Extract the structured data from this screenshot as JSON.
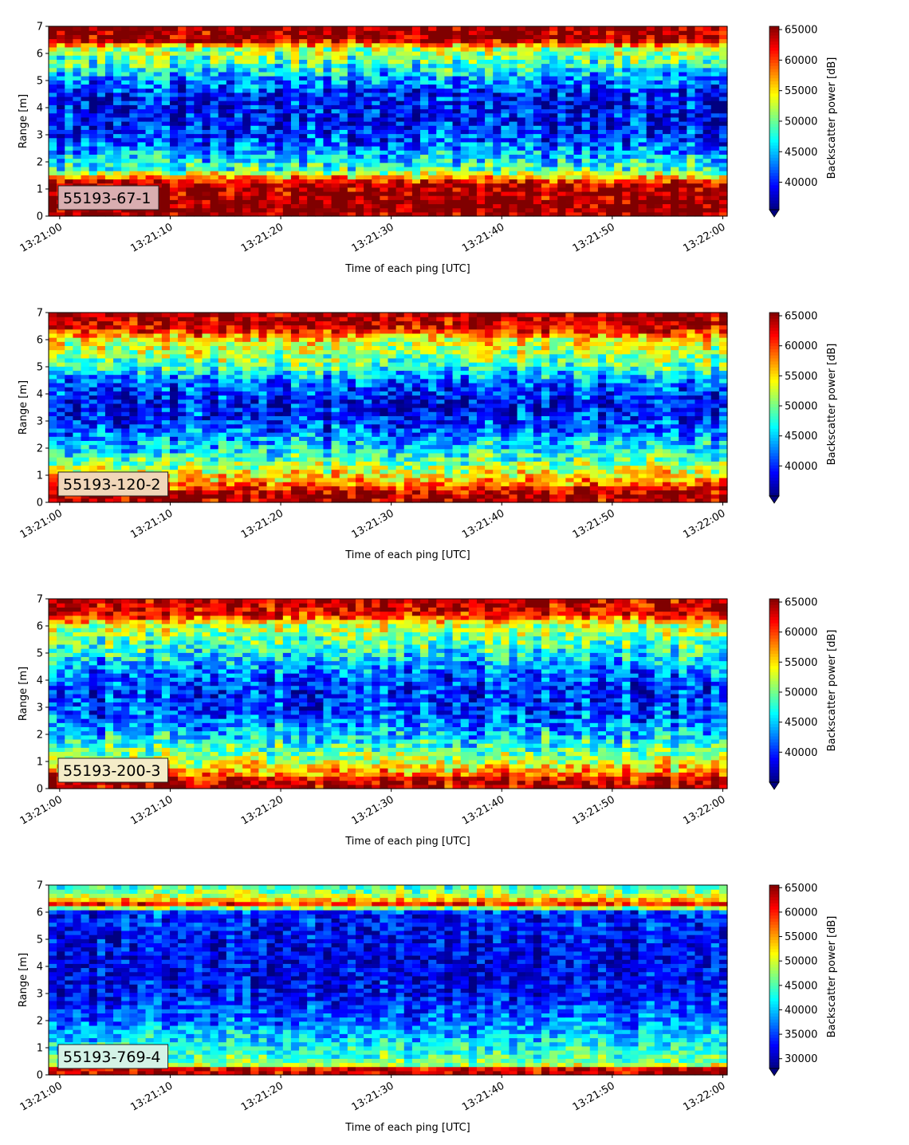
{
  "chart_data": [
    {
      "type": "heatmap",
      "label": "55193-67-1",
      "label_bg": "#d9aeb0",
      "xlabel": "Time of each ping [UTC]",
      "ylabel": "Range [m]",
      "xticks": [
        "13:21:00",
        "13:21:10",
        "13:21:20",
        "13:21:30",
        "13:21:40",
        "13:21:50",
        "13:22:00"
      ],
      "x_start": "13:21:00",
      "x_end": "13:22:00",
      "yticks": [
        0,
        1,
        2,
        3,
        4,
        5,
        6,
        7
      ],
      "ylim": [
        0,
        7
      ],
      "colorbar": {
        "label": "Backscatter power [dB]",
        "ticks": [
          40000,
          45000,
          50000,
          55000,
          60000,
          65000
        ],
        "range": [
          35500,
          65535
        ],
        "colormap": "jet",
        "extend": "min"
      },
      "range_profile": [
        {
          "range": 0.0,
          "value": 64000
        },
        {
          "range": 0.2,
          "value": 65535
        },
        {
          "range": 1.2,
          "value": 64000
        },
        {
          "range": 1.7,
          "value": 49000
        },
        {
          "range": 2.2,
          "value": 45000
        },
        {
          "range": 2.8,
          "value": 41000
        },
        {
          "range": 3.5,
          "value": 39000
        },
        {
          "range": 4.3,
          "value": 39000
        },
        {
          "range": 5.0,
          "value": 43000
        },
        {
          "range": 5.6,
          "value": 48000
        },
        {
          "range": 6.2,
          "value": 52000
        },
        {
          "range": 6.5,
          "value": 64000
        },
        {
          "range": 7.0,
          "value": 65535
        }
      ]
    },
    {
      "type": "heatmap",
      "label": "55193-120-2",
      "label_bg": "#f0d6b8",
      "xlabel": "Time of each ping [UTC]",
      "ylabel": "Range [m]",
      "xticks": [
        "13:21:00",
        "13:21:10",
        "13:21:20",
        "13:21:30",
        "13:21:40",
        "13:21:50",
        "13:22:00"
      ],
      "x_start": "13:21:00",
      "x_end": "13:22:00",
      "yticks": [
        0,
        1,
        2,
        3,
        4,
        5,
        6,
        7
      ],
      "ylim": [
        0,
        7
      ],
      "colorbar": {
        "label": "Backscatter power [dB]",
        "ticks": [
          40000,
          45000,
          50000,
          55000,
          60000,
          65000
        ],
        "range": [
          35000,
          65535
        ],
        "colormap": "jet",
        "extend": "min"
      },
      "range_profile": [
        {
          "range": 0.0,
          "value": 64000
        },
        {
          "range": 0.3,
          "value": 65535
        },
        {
          "range": 0.7,
          "value": 58000
        },
        {
          "range": 1.3,
          "value": 52000
        },
        {
          "range": 2.0,
          "value": 46000
        },
        {
          "range": 2.8,
          "value": 41000
        },
        {
          "range": 3.6,
          "value": 39000
        },
        {
          "range": 4.4,
          "value": 42000
        },
        {
          "range": 5.2,
          "value": 50000
        },
        {
          "range": 6.0,
          "value": 54000
        },
        {
          "range": 6.4,
          "value": 63000
        },
        {
          "range": 7.0,
          "value": 65535
        }
      ]
    },
    {
      "type": "heatmap",
      "label": "55193-200-3",
      "label_bg": "#f4ecc8",
      "xlabel": "Time of each ping [UTC]",
      "ylabel": "Range [m]",
      "xticks": [
        "13:21:00",
        "13:21:10",
        "13:21:20",
        "13:21:30",
        "13:21:40",
        "13:21:50",
        "13:22:00"
      ],
      "x_start": "13:21:00",
      "x_end": "13:22:00",
      "yticks": [
        0,
        1,
        2,
        3,
        4,
        5,
        6,
        7
      ],
      "ylim": [
        0,
        7
      ],
      "colorbar": {
        "label": "Backscatter power [dB]",
        "ticks": [
          40000,
          45000,
          50000,
          55000,
          60000,
          65000
        ],
        "range": [
          35000,
          65535
        ],
        "colormap": "jet",
        "extend": "min"
      },
      "range_profile": [
        {
          "range": 0.0,
          "value": 63000
        },
        {
          "range": 0.3,
          "value": 64500
        },
        {
          "range": 0.6,
          "value": 57000
        },
        {
          "range": 1.2,
          "value": 51000
        },
        {
          "range": 2.0,
          "value": 45000
        },
        {
          "range": 2.8,
          "value": 41000
        },
        {
          "range": 3.6,
          "value": 40000
        },
        {
          "range": 4.4,
          "value": 43000
        },
        {
          "range": 5.2,
          "value": 48000
        },
        {
          "range": 6.0,
          "value": 52000
        },
        {
          "range": 6.4,
          "value": 62000
        },
        {
          "range": 7.0,
          "value": 64500
        }
      ]
    },
    {
      "type": "heatmap",
      "label": "55193-769-4",
      "label_bg": "#d4f2e6",
      "xlabel": "Time of each ping [UTC]",
      "ylabel": "Range [m]",
      "xticks": [
        "13:21:00",
        "13:21:10",
        "13:21:20",
        "13:21:30",
        "13:21:40",
        "13:21:50",
        "13:22:00"
      ],
      "x_start": "13:21:00",
      "x_end": "13:22:00",
      "yticks": [
        0,
        1,
        2,
        3,
        4,
        5,
        6,
        7
      ],
      "ylim": [
        0,
        7
      ],
      "colorbar": {
        "label": "Backscatter power [dB]",
        "ticks": [
          30000,
          35000,
          40000,
          45000,
          50000,
          55000,
          60000,
          65000
        ],
        "range": [
          28000,
          65535
        ],
        "colormap": "jet",
        "extend": "min"
      },
      "range_profile": [
        {
          "range": 0.0,
          "value": 62000
        },
        {
          "range": 0.2,
          "value": 64500
        },
        {
          "range": 0.4,
          "value": 47000
        },
        {
          "range": 1.0,
          "value": 43000
        },
        {
          "range": 2.0,
          "value": 37000
        },
        {
          "range": 3.0,
          "value": 33000
        },
        {
          "range": 4.0,
          "value": 32000
        },
        {
          "range": 5.0,
          "value": 32500
        },
        {
          "range": 6.0,
          "value": 34000
        },
        {
          "range": 6.3,
          "value": 60000
        },
        {
          "range": 6.6,
          "value": 50000
        },
        {
          "range": 7.0,
          "value": 44000
        }
      ]
    }
  ]
}
